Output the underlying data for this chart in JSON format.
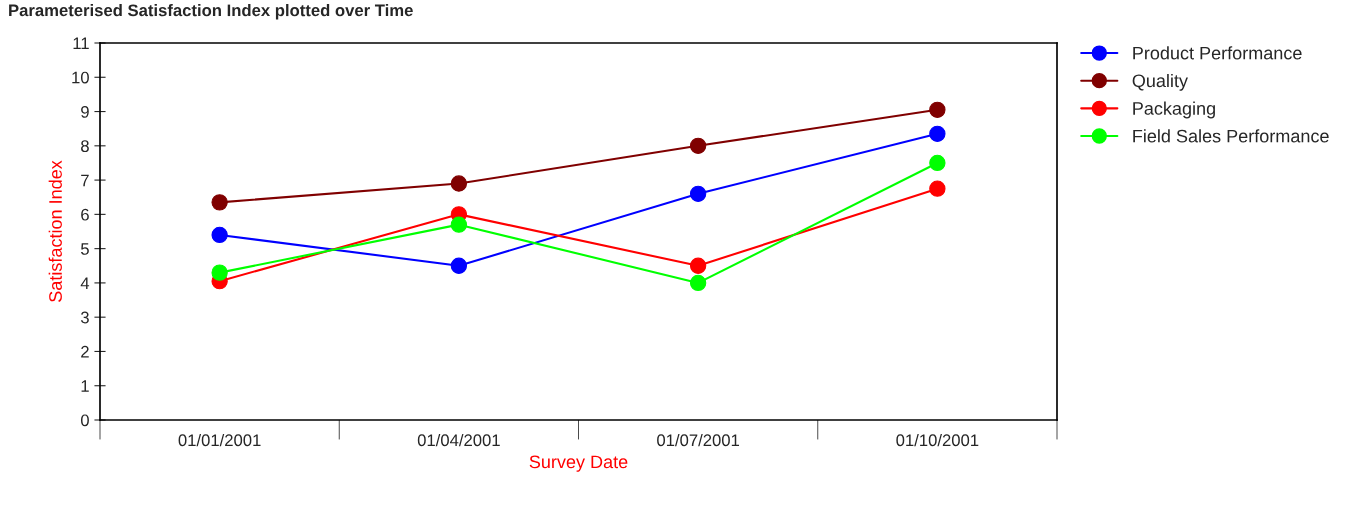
{
  "chart_data": {
    "type": "line",
    "title": "Parameterised Satisfaction Index plotted over Time",
    "xlabel": "Survey Date",
    "ylabel": "Satisfaction Index",
    "categories": [
      "01/01/2001",
      "01/04/2001",
      "01/07/2001",
      "01/10/2001"
    ],
    "series": [
      {
        "name": "Product Performance",
        "color": "#0000ff",
        "values": [
          5.4,
          4.5,
          6.6,
          8.35
        ]
      },
      {
        "name": "Quality",
        "color": "#800000",
        "values": [
          6.35,
          6.9,
          8.0,
          9.05
        ]
      },
      {
        "name": "Packaging",
        "color": "#ff0000",
        "values": [
          4.05,
          6.0,
          4.5,
          6.75
        ]
      },
      {
        "name": "Field Sales Performance",
        "color": "#00ff00",
        "values": [
          4.3,
          5.7,
          4.0,
          7.5
        ]
      }
    ],
    "ylim": [
      0,
      11
    ],
    "yticks": [
      0,
      1,
      2,
      3,
      4,
      5,
      6,
      7,
      8,
      9,
      10,
      11
    ],
    "marker": "circle",
    "line_style": "solid",
    "grid": false,
    "legend": "top right"
  }
}
